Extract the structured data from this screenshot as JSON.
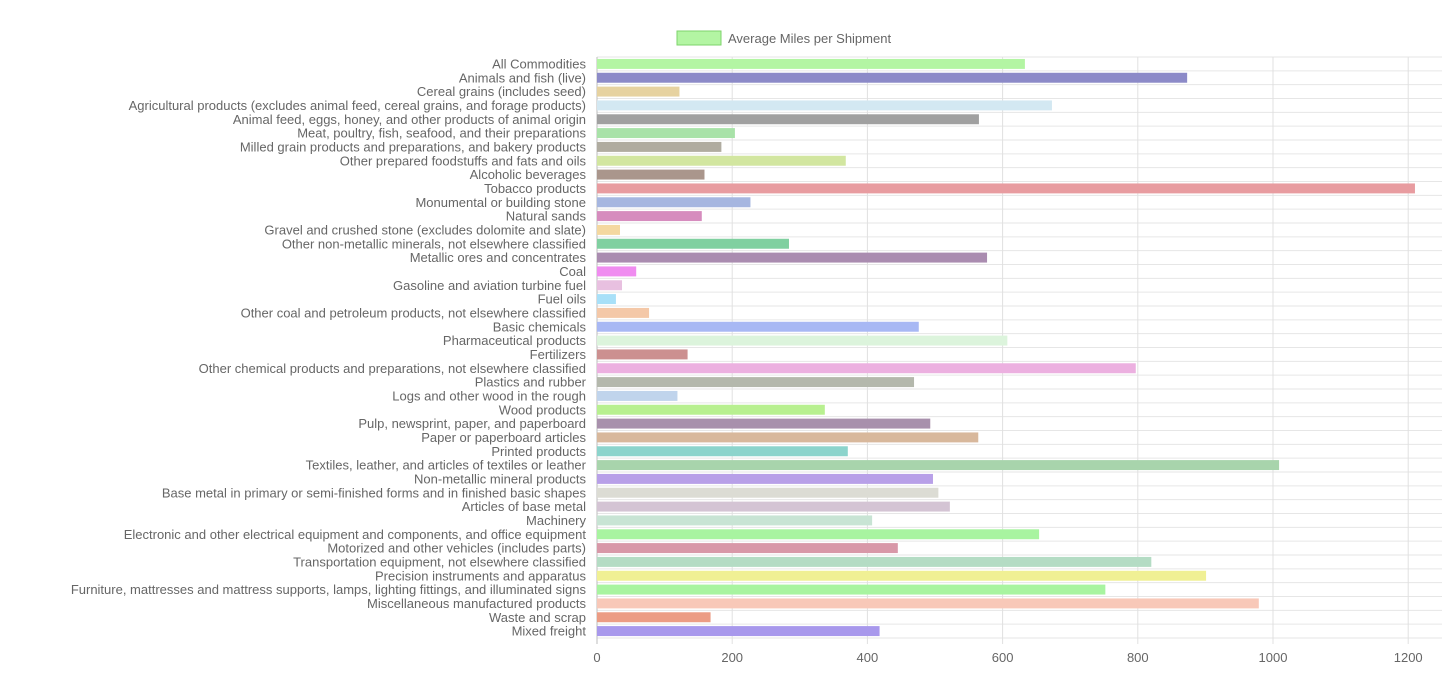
{
  "chart_data": {
    "type": "bar",
    "orientation": "horizontal",
    "title": "",
    "xlabel": "",
    "ylabel": "",
    "xlim": [
      0,
      1250
    ],
    "x_ticks": [
      0,
      200,
      400,
      600,
      800,
      1000,
      1200
    ],
    "grid": true,
    "legend_position": "top-center",
    "series": [
      {
        "name": "Average Miles per Shipment",
        "legend_color": "#b3f5a3",
        "legend_border": "#7ed36b"
      }
    ],
    "categories": [
      "All Commodities",
      "Animals and fish (live)",
      "Cereal grains (includes seed)",
      "Agricultural products (excludes animal feed, cereal grains, and forage products)",
      "Animal feed, eggs, honey, and other products of animal origin",
      "Meat, poultry, fish, seafood, and their preparations",
      "Milled grain products and preparations, and bakery products",
      "Other prepared foodstuffs and fats and oils",
      "Alcoholic beverages",
      "Tobacco products",
      "Monumental or building stone",
      "Natural sands",
      "Gravel and crushed stone (excludes dolomite and slate)",
      "Other non-metallic minerals, not elsewhere classified",
      "Metallic ores and concentrates",
      "Coal",
      "Gasoline and aviation turbine fuel",
      "Fuel oils",
      "Other coal and petroleum products, not elsewhere classified",
      "Basic chemicals",
      "Pharmaceutical products",
      "Fertilizers",
      "Other chemical products and preparations, not elsewhere classified",
      "Plastics and rubber",
      "Logs and other wood in the rough",
      "Wood products",
      "Pulp, newsprint, paper, and paperboard",
      "Paper or paperboard articles",
      "Printed products",
      "Textiles, leather, and articles of textiles or leather",
      "Non-metallic mineral products",
      "Base metal in primary or semi-finished forms and in finished basic shapes",
      "Articles of base metal",
      "Machinery",
      "Electronic and other electrical equipment and components, and office equipment",
      "Motorized and other vehicles (includes parts)",
      "Transportation equipment, not elsewhere classified",
      "Precision instruments and apparatus",
      "Furniture, mattresses and mattress supports, lamps, lighting fittings, and illuminated signs",
      "Miscellaneous manufactured products",
      "Waste and scrap",
      "Mixed freight"
    ],
    "values": [
      633,
      873,
      122,
      673,
      565,
      204,
      184,
      368,
      159,
      1210,
      227,
      155,
      34,
      284,
      577,
      58,
      37,
      28,
      77,
      476,
      607,
      134,
      797,
      469,
      119,
      337,
      493,
      564,
      371,
      1009,
      497,
      505,
      522,
      407,
      654,
      445,
      820,
      901,
      752,
      979,
      168,
      418
    ],
    "colors": [
      "#b3f5a3",
      "#8c8ac8",
      "#e6d2a0",
      "#d3e8f2",
      "#a0a0a0",
      "#a8e2a8",
      "#b0aca0",
      "#d2e6a0",
      "#aa968c",
      "#e89ca0",
      "#a6b6e0",
      "#d68cbe",
      "#f4d8a0",
      "#80d0a0",
      "#aa8cb0",
      "#f08cf0",
      "#e8c0e0",
      "#a8e0f8",
      "#f4c8a8",
      "#a8b8f4",
      "#dcf4dc",
      "#cc9090",
      "#ecb0e0",
      "#b4b8ac",
      "#c0d4ec",
      "#b8f090",
      "#a890ac",
      "#d8b89c",
      "#8cd4cc",
      "#a8d4ac",
      "#b8a0e8",
      "#dcdcd4",
      "#d4c4d4",
      "#c8e4d4",
      "#a8f4a0",
      "#d898a8",
      "#b4dcc4",
      "#f0f094",
      "#a8f4a0",
      "#f8c8b8",
      "#ec9c84",
      "#a898ec"
    ]
  }
}
